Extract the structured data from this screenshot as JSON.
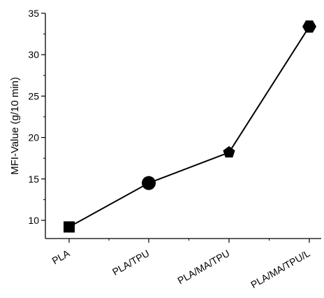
{
  "chart_data": {
    "type": "line",
    "categories": [
      "PLA",
      "PLA/TPU",
      "PLA/MA/TPU",
      "PLA/MA/TPU/L"
    ],
    "series": [
      {
        "values": [
          9.2,
          14.5,
          18.2,
          33.4
        ],
        "markers": [
          "square",
          "circle",
          "pentagon",
          "hexagon"
        ]
      }
    ],
    "title": "",
    "xlabel": "",
    "ylabel": "MFI-Value (g/10 min)",
    "ylim": [
      7.8,
      35
    ],
    "yticks": [
      10,
      15,
      20,
      25,
      30,
      35
    ],
    "grid": false,
    "legend": "none",
    "colors": {
      "line": "#000000",
      "marker": "#000000",
      "axis": "#000000"
    }
  }
}
